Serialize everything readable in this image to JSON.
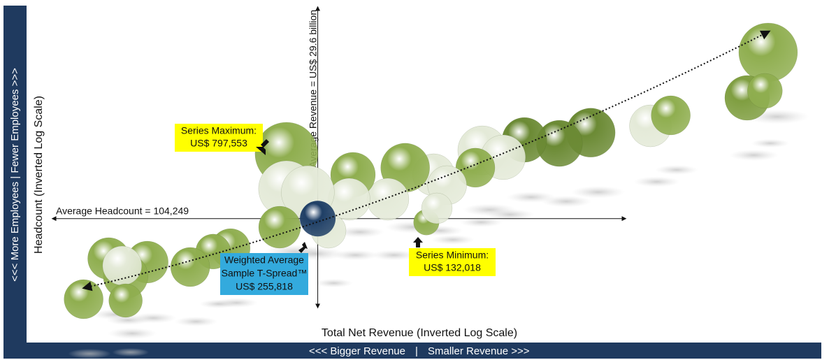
{
  "chart_data": {
    "type": "bubble",
    "x_label": "Total Net Revenue (Inverted Log Scale)",
    "y_label": "Headcount (Inverted Log Scale)",
    "x_banner_left": "<<< Bigger Revenue",
    "x_banner_sep": "|",
    "x_banner_right": "Smaller Revenue >>>",
    "y_banner": "<<< More Employees | Fewer Employees >>>",
    "x_log": true,
    "x_inverted": true,
    "y_log": true,
    "y_inverted": true,
    "xlim": [
      315,
      0.5
    ],
    "ylim": [
      1000000,
      1000
    ],
    "size_max": 797553,
    "x": [
      0.75,
      0.89,
      0.77,
      1.96,
      1.66,
      3.19,
      4.12,
      5.48,
      7.73,
      6.52,
      8.18,
      11.5,
      10.3,
      14.5,
      16.7,
      22.2,
      22.9,
      38.2,
      38.2,
      32.1,
      40.4,
      27.1,
      12.2,
      11.2,
      60.3,
      69.5,
      83.8,
      119,
      142,
      163,
      146,
      200,
      142
    ],
    "y": [
      2710,
      7360,
      6310,
      13600,
      10800,
      15800,
      20000,
      18500,
      23300,
      27100,
      34100,
      39800,
      50100,
      34100,
      68100,
      39800,
      68100,
      25100,
      54100,
      58500,
      126000,
      136000,
      113000,
      83200,
      200000,
      215000,
      302000,
      271000,
      369000,
      251000,
      293000,
      612000,
      631000
    ],
    "sizes": [
      695000,
      403000,
      246000,
      354500,
      308800,
      482500,
      428900,
      403300,
      482500,
      403300,
      308800,
      354500,
      308800,
      482500,
      354500,
      403300,
      354500,
      797553,
      630200,
      568700,
      354500,
      246200,
      132018,
      190600,
      308800,
      246200,
      308800,
      354500,
      403300,
      354500,
      308800,
      308800,
      226900
    ],
    "colors": [
      "#8fae4f",
      "#7f9e40",
      "#8fae4f",
      "#e4ead8",
      "#8fae4f",
      "#6b8a34",
      "#6b8a34",
      "#6b8a34",
      "#e4ead8",
      "#e4ead8",
      "#8fae4f",
      "#e4ead8",
      "#e4ead8",
      "#8fae4f",
      "#e4ead8",
      "#8fae4f",
      "#e4ead8",
      "#8fae4f",
      "#e4ead8",
      "#e4ead8",
      "#8fae4f",
      "#e4ead8",
      "#8fae4f",
      "#e4ead8",
      "#8fae4f",
      "#8fae4f",
      "#8fae4f",
      "#8fae4f",
      "#8fae4f",
      "#8fae4f",
      "#e4ead8",
      "#8fae4f",
      "#8fae4f"
    ],
    "average_revenue": 29.6,
    "average_revenue_label": "Average Revenue  = US$ 29.6 billion",
    "average_headcount": 104249,
    "average_headcount_label": "Average Headcount = 104,249",
    "weighted_average": {
      "size": 255818,
      "color": "#1f3f66",
      "lines": [
        "Weighted Average",
        "Sample T-Spread™",
        "US$ 255,818"
      ]
    },
    "max_label": [
      "Series Maximum:",
      "US$ 797,553"
    ],
    "min_label": [
      "Series Minimum:",
      "US$ 132,018"
    ]
  }
}
